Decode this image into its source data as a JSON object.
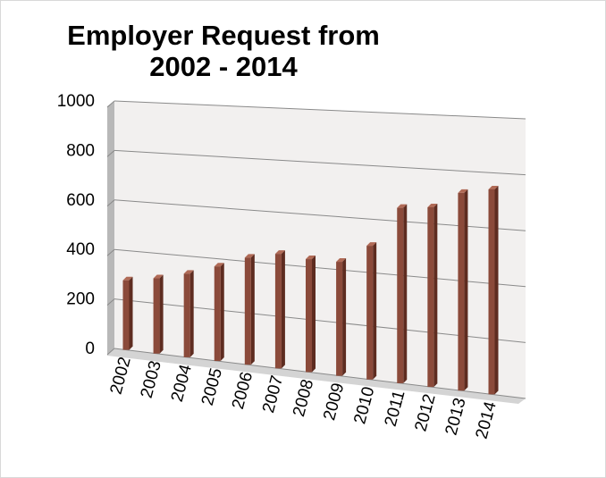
{
  "chart_data": {
    "type": "bar",
    "title_lines": [
      "Employer Request from",
      "2002 - 2014"
    ],
    "categories": [
      "2002",
      "2003",
      "2004",
      "2005",
      "2006",
      "2007",
      "2008",
      "2009",
      "2010",
      "2011",
      "2012",
      "2013",
      "2014"
    ],
    "values": [
      280,
      300,
      330,
      370,
      415,
      440,
      430,
      430,
      500,
      650,
      660,
      720,
      740
    ],
    "ylim": [
      0,
      1000
    ],
    "yticks": [
      "0",
      "200",
      "400",
      "600",
      "800",
      "1000"
    ],
    "grid": true,
    "legend": "none",
    "three_d": true,
    "colors": {
      "bar": "#8b4a3a",
      "bar_dark": "#5e2c20",
      "bar_light": "#b06a56",
      "wall": "#f2f0ef",
      "wall_side": "#b8b8b8",
      "floor": "#d4d4d4",
      "grid": "#8a8a8a",
      "frame": "#d8d8d8"
    }
  }
}
